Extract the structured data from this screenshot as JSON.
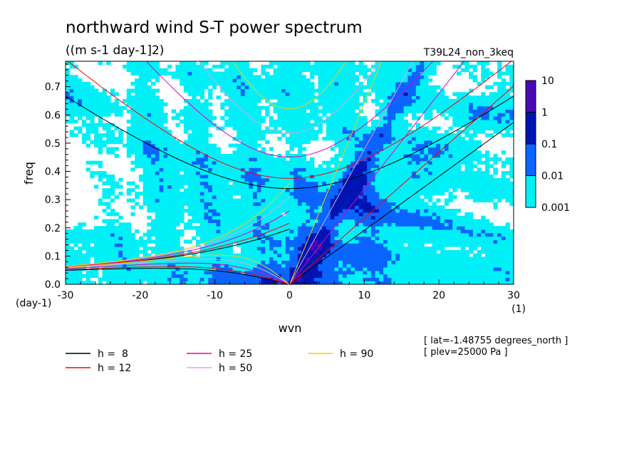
{
  "header": {
    "title": "northward wind S-T power spectrum",
    "units": "((m s-1 day-1]2)",
    "run_name": "T39L24_non_3keq"
  },
  "chart_data": {
    "type": "heatmap",
    "title": "northward wind S-T power spectrum",
    "subtitle": "((m s-1 day-1]2)",
    "xlabel": "wvn",
    "ylabel": "freq",
    "x_unit": "(1)",
    "y_unit": "(day-1)",
    "xlim": [
      -30,
      30
    ],
    "ylim": [
      0,
      0.79
    ],
    "x_ticks": [
      -30,
      -20,
      -10,
      0,
      10,
      20,
      30
    ],
    "x_tick_labels": [
      "-30",
      "-20",
      "-10",
      "0",
      "10",
      "20",
      "30"
    ],
    "y_ticks": [
      0,
      0.1,
      0.2,
      0.3,
      0.4,
      0.5,
      0.6,
      0.7
    ],
    "y_tick_labels": [
      "0.0",
      "0.1",
      "0.2",
      "0.3",
      "0.4",
      "0.5",
      "0.6",
      "0.7"
    ],
    "colorbar": {
      "levels": [
        0.001,
        0.01,
        0.1,
        1,
        10
      ],
      "labels": [
        "0.001",
        "0.01",
        "0.1",
        "1",
        "10"
      ],
      "colors": [
        "#00f0f8",
        "#0a64ff",
        "#0014b4",
        "#4a0ab4"
      ]
    },
    "legend": {
      "placement": "bottom-left",
      "entries": [
        {
          "label": "h =  8",
          "color": "#000000"
        },
        {
          "label": "h = 25",
          "color": "#e000c0"
        },
        {
          "label": "h = 90",
          "color": "#f0d000"
        },
        {
          "label": "h = 12",
          "color": "#ff0000"
        },
        {
          "label": "h = 50",
          "color": "#e0a0e0"
        }
      ]
    },
    "dispersion_curves": {
      "equivalent_depths_m": [
        8,
        12,
        25,
        50,
        90
      ],
      "colors": [
        "#000000",
        "#ff0000",
        "#e000c0",
        "#e0a0e0",
        "#f0d000"
      ]
    },
    "annotations": [
      "[ lat=-1.48755 degrees_north ]",
      "[ plev=25000 Pa ]"
    ]
  }
}
